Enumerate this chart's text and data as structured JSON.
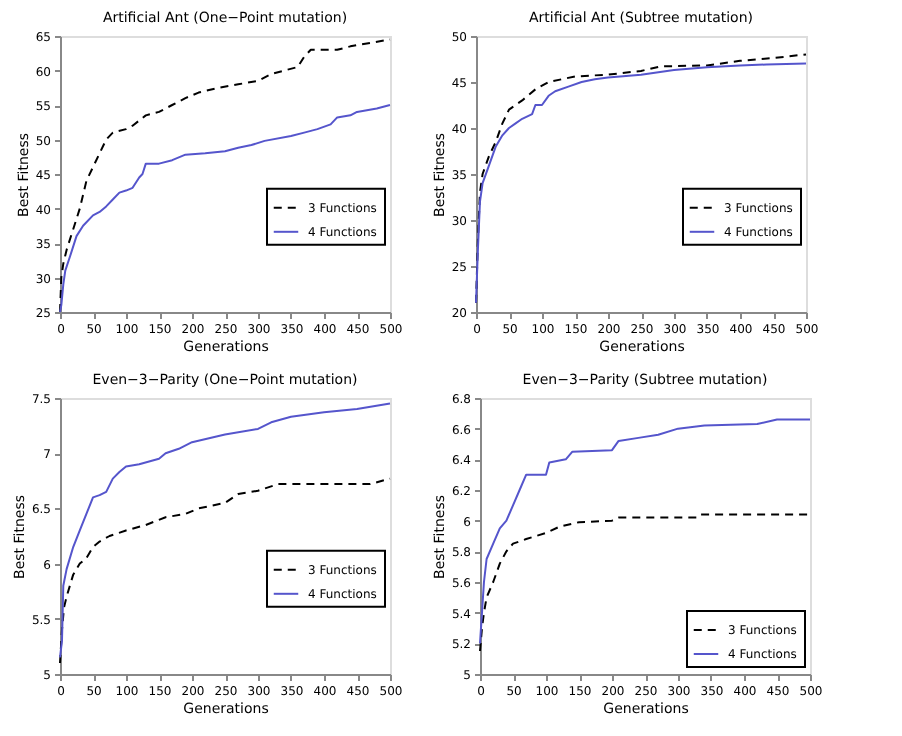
{
  "chart_data": [
    {
      "type": "line",
      "title": "Artificial Ant (One−Point mutation)",
      "xlabel": "Generations",
      "ylabel": "Best Fitness",
      "xlim": [
        0,
        500
      ],
      "xticks": [
        0,
        50,
        100,
        150,
        200,
        250,
        300,
        350,
        400,
        450,
        500
      ],
      "ylim": [
        25,
        65
      ],
      "yticks": [
        25,
        30,
        35,
        40,
        45,
        50,
        55,
        60,
        65
      ],
      "grid": false,
      "legend": "right",
      "series": [
        {
          "name": "3 Functions",
          "color": "#000000",
          "line_style": "dashed",
          "x": [
            0,
            2,
            5,
            10,
            20,
            30,
            40,
            50,
            60,
            70,
            80,
            100,
            110,
            130,
            150,
            170,
            190,
            210,
            240,
            270,
            300,
            320,
            340,
            360,
            370,
            380,
            400,
            420,
            440,
            470,
            500
          ],
          "values": [
            25,
            30,
            32,
            34,
            37,
            40,
            44,
            46,
            48,
            50,
            51,
            51.5,
            52,
            53.5,
            54,
            55,
            56,
            56.8,
            57.5,
            58,
            58.5,
            59.5,
            60,
            60.5,
            62,
            63,
            63,
            63,
            63.5,
            64,
            64.5
          ]
        },
        {
          "name": "4 Functions",
          "color": "#5555cc",
          "line_style": "solid",
          "x": [
            0,
            2,
            5,
            8,
            15,
            25,
            35,
            50,
            60,
            70,
            80,
            90,
            100,
            110,
            120,
            125,
            130,
            150,
            170,
            190,
            220,
            250,
            270,
            290,
            310,
            350,
            370,
            390,
            410,
            420,
            440,
            450,
            480,
            500
          ],
          "values": [
            25,
            26,
            29,
            31,
            33,
            36,
            37.5,
            39,
            39.5,
            40.3,
            41.3,
            42.3,
            42.6,
            43,
            44.5,
            45,
            46.5,
            46.5,
            47,
            47.8,
            48,
            48.3,
            48.8,
            49.2,
            49.8,
            50.5,
            51,
            51.5,
            52.2,
            53.2,
            53.5,
            54,
            54.5,
            55
          ]
        }
      ]
    },
    {
      "type": "line",
      "title": "Artificial Ant (Subtree mutation)",
      "xlabel": "Generations",
      "ylabel": "Best Fitness",
      "xlim": [
        0,
        500
      ],
      "xticks": [
        0,
        50,
        100,
        150,
        200,
        250,
        300,
        350,
        400,
        450,
        500
      ],
      "ylim": [
        20,
        50
      ],
      "yticks": [
        20,
        25,
        30,
        35,
        40,
        45,
        50
      ],
      "grid": false,
      "legend": "right",
      "series": [
        {
          "name": "3 Functions",
          "color": "#000000",
          "line_style": "dashed",
          "x": [
            0,
            3,
            6,
            10,
            20,
            30,
            40,
            50,
            70,
            90,
            110,
            130,
            150,
            200,
            250,
            280,
            350,
            400,
            450,
            500
          ],
          "values": [
            21,
            28,
            33,
            35,
            37,
            38.5,
            40.5,
            42,
            43,
            44.2,
            45,
            45.3,
            45.6,
            45.8,
            46.2,
            46.7,
            46.8,
            47.3,
            47.6,
            48
          ]
        },
        {
          "name": "4 Functions",
          "color": "#5555cc",
          "line_style": "solid",
          "x": [
            0,
            3,
            6,
            10,
            20,
            30,
            40,
            50,
            60,
            70,
            85,
            90,
            100,
            110,
            120,
            140,
            160,
            180,
            200,
            250,
            300,
            350,
            400,
            440,
            500
          ],
          "values": [
            21,
            27,
            32,
            34,
            36,
            38,
            39.2,
            40,
            40.5,
            41,
            41.5,
            42.5,
            42.5,
            43.5,
            44,
            44.5,
            45,
            45.3,
            45.5,
            45.8,
            46.3,
            46.6,
            46.8,
            46.9,
            47
          ]
        }
      ]
    },
    {
      "type": "line",
      "title": "Even−3−Parity (One−Point mutation)",
      "xlabel": "Generations",
      "ylabel": "Best Fitness",
      "xlim": [
        0,
        500
      ],
      "xticks": [
        0,
        50,
        100,
        150,
        200,
        250,
        300,
        350,
        400,
        450,
        500
      ],
      "ylim": [
        5,
        7.5
      ],
      "yticks": [
        5,
        5.5,
        6,
        6.5,
        7,
        7.5
      ],
      "grid": false,
      "legend": "right",
      "series": [
        {
          "name": "3 Functions",
          "color": "#000000",
          "line_style": "dashed",
          "x": [
            0,
            3,
            6,
            10,
            20,
            30,
            40,
            50,
            60,
            75,
            100,
            130,
            160,
            190,
            210,
            250,
            270,
            300,
            330,
            400,
            470,
            500
          ],
          "values": [
            5.1,
            5.4,
            5.6,
            5.7,
            5.9,
            6.0,
            6.05,
            6.15,
            6.2,
            6.25,
            6.3,
            6.35,
            6.42,
            6.45,
            6.5,
            6.55,
            6.63,
            6.66,
            6.72,
            6.72,
            6.72,
            6.77
          ]
        },
        {
          "name": "4 Functions",
          "color": "#5555cc",
          "line_style": "solid",
          "x": [
            0,
            3,
            5,
            10,
            20,
            30,
            40,
            50,
            60,
            70,
            80,
            90,
            100,
            120,
            150,
            160,
            180,
            200,
            250,
            300,
            320,
            350,
            400,
            450,
            500
          ],
          "values": [
            5.15,
            5.3,
            5.8,
            5.95,
            6.15,
            6.3,
            6.45,
            6.6,
            6.62,
            6.65,
            6.77,
            6.83,
            6.88,
            6.9,
            6.95,
            7.0,
            7.04,
            7.1,
            7.17,
            7.22,
            7.28,
            7.33,
            7.37,
            7.4,
            7.45
          ]
        }
      ]
    },
    {
      "type": "line",
      "title": "Even−3−Parity (Subtree mutation)",
      "xlabel": "Generations",
      "ylabel": "Best Fitness",
      "xlim": [
        0,
        500
      ],
      "xticks": [
        0,
        50,
        100,
        150,
        200,
        250,
        300,
        350,
        400,
        450,
        500
      ],
      "ylim": [
        5,
        6.8
      ],
      "yticks": [
        5,
        5.2,
        5.4,
        5.6,
        5.8,
        6,
        6.2,
        6.4,
        6.6,
        6.8
      ],
      "grid": false,
      "legend": "bottom right",
      "series": [
        {
          "name": "3 Functions",
          "color": "#000000",
          "line_style": "dashed",
          "x": [
            0,
            3,
            6,
            10,
            20,
            30,
            40,
            50,
            70,
            100,
            120,
            150,
            200,
            210,
            330,
            335,
            500
          ],
          "values": [
            5.15,
            5.3,
            5.4,
            5.5,
            5.6,
            5.72,
            5.8,
            5.85,
            5.88,
            5.92,
            5.96,
            5.99,
            6.0,
            6.02,
            6.02,
            6.04,
            6.04
          ]
        },
        {
          "name": "4 Functions",
          "color": "#5555cc",
          "line_style": "solid",
          "x": [
            0,
            3,
            6,
            10,
            20,
            30,
            40,
            50,
            60,
            70,
            100,
            105,
            130,
            140,
            200,
            210,
            240,
            270,
            300,
            340,
            420,
            450,
            500
          ],
          "values": [
            5.2,
            5.4,
            5.6,
            5.75,
            5.85,
            5.95,
            6.0,
            6.1,
            6.2,
            6.3,
            6.3,
            6.38,
            6.4,
            6.45,
            6.46,
            6.52,
            6.54,
            6.56,
            6.6,
            6.62,
            6.63,
            6.66,
            6.66
          ]
        }
      ]
    }
  ]
}
